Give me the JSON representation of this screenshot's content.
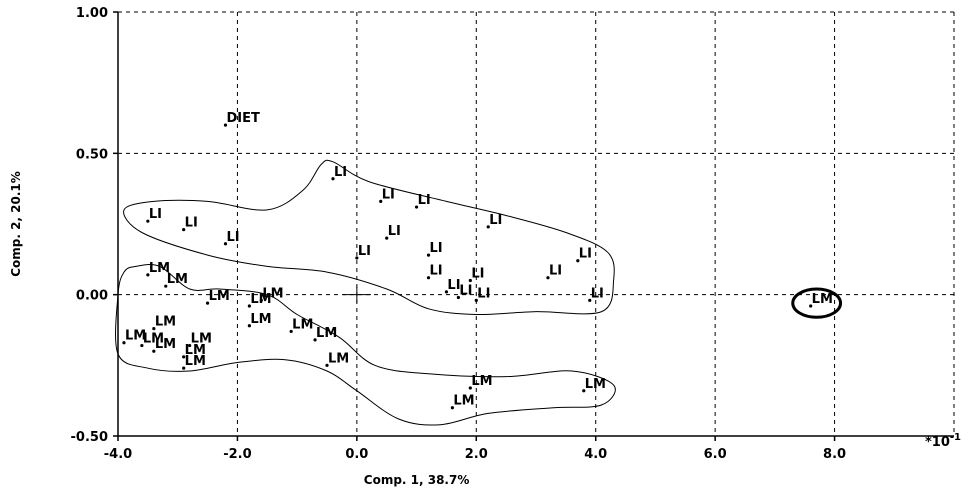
{
  "chart_data": {
    "type": "scatter",
    "xlabel": "Comp. 1, 38.7%",
    "ylabel": "Comp. 2, 20.1%",
    "x_scale_note": "*10^-1",
    "xlim": [
      -4.0,
      10.0
    ],
    "ylim": [
      -0.5,
      1.0
    ],
    "x_ticks": [
      "-4.0",
      "-2.0",
      "0.0",
      "2.0",
      "4.0",
      "6.0",
      "8.0"
    ],
    "x_tick_values": [
      -4,
      -2,
      0,
      2,
      4,
      6,
      8
    ],
    "y_ticks": [
      "1.00",
      "0.50",
      "0.00",
      "-0.50"
    ],
    "y_tick_values": [
      1.0,
      0.5,
      0.0,
      -0.5
    ],
    "grid": true,
    "points": [
      {
        "label": "DIET",
        "x": -2.2,
        "y": 0.6
      },
      {
        "label": "LI",
        "x": -0.4,
        "y": 0.41
      },
      {
        "label": "LI",
        "x": 0.4,
        "y": 0.33
      },
      {
        "label": "LI",
        "x": 1.0,
        "y": 0.31
      },
      {
        "label": "LI",
        "x": -3.5,
        "y": 0.26
      },
      {
        "label": "LI",
        "x": -2.9,
        "y": 0.23
      },
      {
        "label": "LI",
        "x": 2.2,
        "y": 0.24
      },
      {
        "label": "LI",
        "x": 0.5,
        "y": 0.2
      },
      {
        "label": "LI",
        "x": -2.2,
        "y": 0.18
      },
      {
        "label": "LI",
        "x": 0.0,
        "y": 0.13
      },
      {
        "label": "LI",
        "x": 1.2,
        "y": 0.14
      },
      {
        "label": "LI",
        "x": 3.7,
        "y": 0.12
      },
      {
        "label": "LI",
        "x": 1.2,
        "y": 0.06
      },
      {
        "label": "LI",
        "x": 3.2,
        "y": 0.06
      },
      {
        "label": "LI",
        "x": 1.9,
        "y": 0.05
      },
      {
        "label": "LI",
        "x": 1.5,
        "y": 0.01
      },
      {
        "label": "LI",
        "x": 1.7,
        "y": -0.01
      },
      {
        "label": "LI",
        "x": 2.0,
        "y": -0.02
      },
      {
        "label": "LI",
        "x": 3.9,
        "y": -0.02
      },
      {
        "label": "LM",
        "x": 7.6,
        "y": -0.04
      },
      {
        "label": "LM",
        "x": -3.5,
        "y": 0.07
      },
      {
        "label": "LM",
        "x": -3.2,
        "y": 0.03
      },
      {
        "label": "LM",
        "x": -2.5,
        "y": -0.03
      },
      {
        "label": "LM",
        "x": -1.8,
        "y": -0.04
      },
      {
        "label": "LM",
        "x": -1.6,
        "y": -0.02
      },
      {
        "label": "LM",
        "x": -1.8,
        "y": -0.11
      },
      {
        "label": "LM",
        "x": -1.1,
        "y": -0.13
      },
      {
        "label": "LM",
        "x": -0.7,
        "y": -0.16
      },
      {
        "label": "LM",
        "x": -3.4,
        "y": -0.12
      },
      {
        "label": "LM",
        "x": -3.9,
        "y": -0.17
      },
      {
        "label": "LM",
        "x": -3.6,
        "y": -0.18
      },
      {
        "label": "LM",
        "x": -2.8,
        "y": -0.18
      },
      {
        "label": "LM",
        "x": -3.4,
        "y": -0.2
      },
      {
        "label": "LM",
        "x": -2.9,
        "y": -0.22
      },
      {
        "label": "LM",
        "x": -2.9,
        "y": -0.26
      },
      {
        "label": "LM",
        "x": -0.5,
        "y": -0.25
      },
      {
        "label": "LM",
        "x": 1.9,
        "y": -0.33
      },
      {
        "label": "LM",
        "x": 3.8,
        "y": -0.34
      },
      {
        "label": "LM",
        "x": 1.6,
        "y": -0.4
      }
    ],
    "groups": [
      {
        "name": "LI",
        "hull": [
          [
            -0.4,
            0.47
          ],
          [
            0.2,
            0.4
          ],
          [
            1.5,
            0.33
          ],
          [
            2.5,
            0.28
          ],
          [
            3.5,
            0.22
          ],
          [
            4.2,
            0.15
          ],
          [
            4.3,
            0.05
          ],
          [
            4.1,
            -0.06
          ],
          [
            3.0,
            -0.06
          ],
          [
            2.0,
            -0.07
          ],
          [
            1.2,
            -0.05
          ],
          [
            0.5,
            0.02
          ],
          [
            -0.5,
            0.08
          ],
          [
            -1.5,
            0.1
          ],
          [
            -2.5,
            0.14
          ],
          [
            -3.6,
            0.22
          ],
          [
            -3.9,
            0.3
          ],
          [
            -3.4,
            0.33
          ],
          [
            -2.5,
            0.33
          ],
          [
            -1.5,
            0.3
          ],
          [
            -0.9,
            0.37
          ],
          [
            -0.6,
            0.46
          ]
        ]
      },
      {
        "name": "LM",
        "hull": [
          [
            -3.7,
            0.1
          ],
          [
            -3.3,
            0.1
          ],
          [
            -2.8,
            0.02
          ],
          [
            -2.3,
            0.02
          ],
          [
            -1.5,
            0.0
          ],
          [
            -1.0,
            -0.07
          ],
          [
            -0.3,
            -0.15
          ],
          [
            0.3,
            -0.25
          ],
          [
            1.2,
            -0.28
          ],
          [
            2.5,
            -0.29
          ],
          [
            3.6,
            -0.27
          ],
          [
            4.3,
            -0.32
          ],
          [
            4.1,
            -0.39
          ],
          [
            3.3,
            -0.4
          ],
          [
            2.2,
            -0.42
          ],
          [
            1.4,
            -0.46
          ],
          [
            0.7,
            -0.44
          ],
          [
            0.0,
            -0.34
          ],
          [
            -0.5,
            -0.27
          ],
          [
            -1.2,
            -0.23
          ],
          [
            -2.0,
            -0.24
          ],
          [
            -2.8,
            -0.27
          ],
          [
            -3.5,
            -0.26
          ],
          [
            -4.0,
            -0.21
          ],
          [
            -4.0,
            0.0
          ],
          [
            -3.9,
            0.08
          ]
        ]
      },
      {
        "name": "LM-outlier",
        "ellipse": {
          "cx": 7.7,
          "cy": -0.03,
          "rx": 0.4,
          "ry": 0.05
        }
      }
    ]
  }
}
